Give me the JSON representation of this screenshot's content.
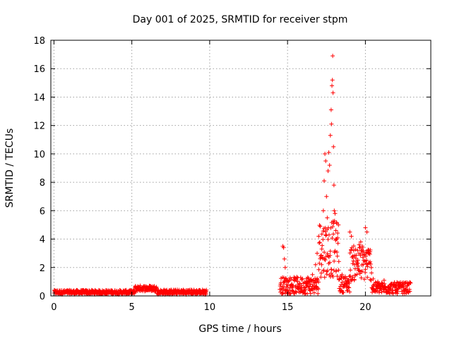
{
  "chart_data": {
    "type": "scatter",
    "title": "Day 001 of 2025, SRMTID for receiver stpm",
    "xlabel": "GPS time / hours",
    "ylabel": "SRMTID / TECUs",
    "xlim": [
      -0.2,
      24.2
    ],
    "ylim": [
      0,
      18
    ],
    "xticks": [
      0,
      5,
      10,
      15,
      20
    ],
    "yticks": [
      0,
      2,
      4,
      6,
      8,
      10,
      12,
      14,
      16,
      18
    ],
    "grid": true,
    "marker": "plus",
    "series": [
      {
        "name": "stpm",
        "color": "#ff0000",
        "segments": [
          {
            "x_start": 0.0,
            "x_end": 5.2,
            "y_base": 0.2,
            "y_jitter": 0.3
          },
          {
            "x_start": 5.2,
            "x_end": 6.6,
            "y_base": 0.45,
            "y_jitter": 0.4
          },
          {
            "x_start": 6.6,
            "x_end": 9.8,
            "y_base": 0.2,
            "y_jitter": 0.35
          },
          {
            "x_start": 14.5,
            "x_end": 17.0,
            "y_base": 0.5,
            "y_jitter": 1.2
          },
          {
            "x_start": 17.0,
            "x_end": 18.3,
            "y_base": 2.5,
            "y_jitter": 4.0
          },
          {
            "x_start": 18.3,
            "x_end": 19.0,
            "y_base": 0.6,
            "y_jitter": 1.2
          },
          {
            "x_start": 19.0,
            "x_end": 20.4,
            "y_base": 1.8,
            "y_jitter": 2.5
          },
          {
            "x_start": 20.4,
            "x_end": 22.9,
            "y_base": 0.4,
            "y_jitter": 0.8
          }
        ],
        "points": [
          [
            14.7,
            3.5
          ],
          [
            14.75,
            3.4
          ],
          [
            14.8,
            2.6
          ],
          [
            14.85,
            2.0
          ],
          [
            14.9,
            1.2
          ],
          [
            16.3,
            1.3
          ],
          [
            16.4,
            1.0
          ],
          [
            16.6,
            1.5
          ],
          [
            16.8,
            2.2
          ],
          [
            16.9,
            3.0
          ],
          [
            17.0,
            4.2
          ],
          [
            17.1,
            4.9
          ],
          [
            17.2,
            3.3
          ],
          [
            17.3,
            6.0
          ],
          [
            17.35,
            8.1
          ],
          [
            17.4,
            10.0
          ],
          [
            17.45,
            9.5
          ],
          [
            17.5,
            7.0
          ],
          [
            17.55,
            5.5
          ],
          [
            17.6,
            8.8
          ],
          [
            17.65,
            10.1
          ],
          [
            17.7,
            9.2
          ],
          [
            17.75,
            11.3
          ],
          [
            17.8,
            13.1
          ],
          [
            17.82,
            12.1
          ],
          [
            17.85,
            14.8
          ],
          [
            17.88,
            15.2
          ],
          [
            17.9,
            16.9
          ],
          [
            17.92,
            14.3
          ],
          [
            17.95,
            10.5
          ],
          [
            17.98,
            7.8
          ],
          [
            18.0,
            6.0
          ],
          [
            18.05,
            5.8
          ],
          [
            18.1,
            4.6
          ],
          [
            18.15,
            4.0
          ],
          [
            18.2,
            2.8
          ],
          [
            18.3,
            1.2
          ],
          [
            18.5,
            1.5
          ],
          [
            18.7,
            0.8
          ],
          [
            18.9,
            1.0
          ],
          [
            19.0,
            4.5
          ],
          [
            19.1,
            4.2
          ],
          [
            19.2,
            2.8
          ],
          [
            19.3,
            2.2
          ],
          [
            19.5,
            3.2
          ],
          [
            19.6,
            3.6
          ],
          [
            19.7,
            3.8
          ],
          [
            19.8,
            3.5
          ],
          [
            20.0,
            4.8
          ],
          [
            20.1,
            4.5
          ],
          [
            20.2,
            3.0
          ],
          [
            20.3,
            2.4
          ],
          [
            20.5,
            1.2
          ],
          [
            20.8,
            1.0
          ],
          [
            21.2,
            1.1
          ],
          [
            21.5,
            0.6
          ],
          [
            22.0,
            0.4
          ],
          [
            22.7,
            0.7
          ]
        ]
      }
    ]
  }
}
